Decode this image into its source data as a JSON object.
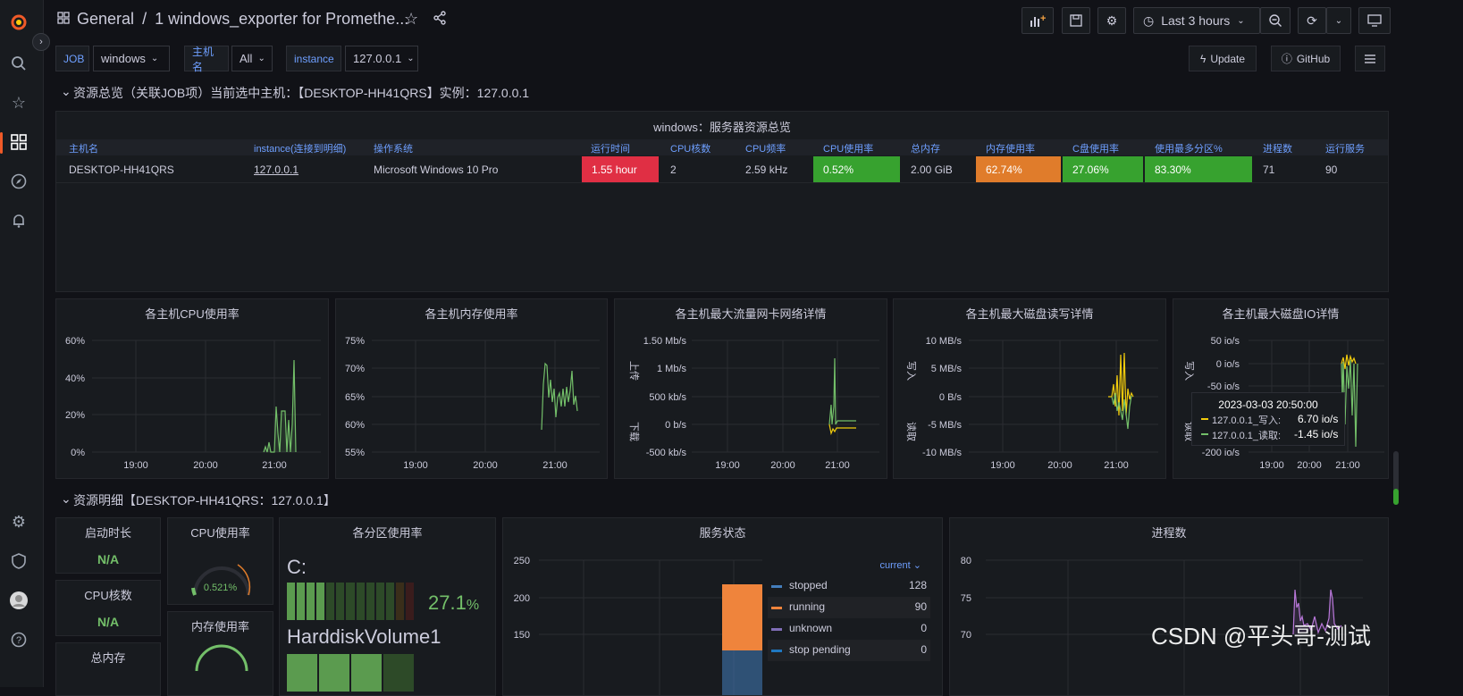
{
  "breadcrumb": {
    "folder": "General",
    "separator": "/",
    "dashboard": "1 windows_exporter for Promethe..."
  },
  "toolbar": {
    "time_range": "Last 3 hours"
  },
  "variables": [
    {
      "label": "JOB",
      "value": "windows"
    },
    {
      "label": "主机名",
      "value": "All"
    },
    {
      "label": "instance",
      "value": "127.0.0.1"
    }
  ],
  "links": {
    "update": "Update",
    "github": "GitHub"
  },
  "rows": {
    "overview": "资源总览（关联JOB项）当前选中主机：【DESKTOP-HH41QRS】实例：127.0.0.1",
    "detail": "资源明细【DESKTOP-HH41QRS：127.0.0.1】"
  },
  "overview_table": {
    "title": "windows：服务器资源总览",
    "headers": [
      "主机名",
      "instance(连接到明细)",
      "操作系统",
      "运行时间",
      "CPU核数",
      "CPU频率",
      "CPU使用率",
      "总内存",
      "内存使用率",
      "C盘使用率",
      "使用最多分区%",
      "进程数",
      "运行服务"
    ],
    "row": [
      "DESKTOP-HH41QRS",
      "127.0.0.1",
      "Microsoft Windows 10 Pro",
      "1.55 hour",
      "2",
      "2.59 kHz",
      "0.52%",
      "2.00 GiB",
      "62.74%",
      "27.06%",
      "83.30%",
      "71",
      "90"
    ],
    "cell_colors": {
      "uptime": "#e02f44",
      "cpu": "#37a22f",
      "mem": "#e07c2b",
      "cdisk": "#37a22f",
      "maxpart": "#37a22f"
    }
  },
  "panels": {
    "cpu": {
      "title": "各主机CPU使用率",
      "yticks": [
        "60%",
        "40%",
        "20%",
        "0%"
      ],
      "xticks": [
        "19:00",
        "20:00",
        "21:00"
      ]
    },
    "mem": {
      "title": "各主机内存使用率",
      "yticks": [
        "75%",
        "70%",
        "65%",
        "60%",
        "55%"
      ],
      "xticks": [
        "19:00",
        "20:00",
        "21:00"
      ]
    },
    "net": {
      "title": "各主机最大流量网卡网络详情",
      "yticks": [
        "1.50 Mb/s",
        "1 Mb/s",
        "500 kb/s",
        "0 b/s",
        "-500 kb/s"
      ],
      "xticks": [
        "19:00",
        "20:00",
        "21:00"
      ],
      "ylabel_top": "上传",
      "ylabel_bottom": "下载"
    },
    "disk": {
      "title": "各主机最大磁盘读写详情",
      "yticks": [
        "10 MB/s",
        "5 MB/s",
        "0 B/s",
        "-5 MB/s",
        "-10 MB/s"
      ],
      "xticks": [
        "19:00",
        "20:00",
        "21:00"
      ],
      "ylabel_top": "写入",
      "ylabel_bottom": "读取"
    },
    "io": {
      "title": "各主机最大磁盘IO详情",
      "yticks": [
        "50 io/s",
        "0 io/s",
        "-50 io/s",
        "-200 io/s"
      ],
      "xticks": [
        "19:00",
        "20:00",
        "21:00"
      ],
      "ylabel_top": "写入",
      "ylabel_bottom": "读取",
      "tooltip": {
        "time": "2023-03-03 20:50:00",
        "rows": [
          {
            "name": "127.0.0.1_写入:",
            "value": "6.70 io/s",
            "color": "#f2cc0c"
          },
          {
            "name": "127.0.0.1_读取:",
            "value": "-1.45 io/s",
            "color": "#73bf69"
          }
        ]
      }
    }
  },
  "detail": {
    "uptime": {
      "title": "启动时长",
      "value": "N/A"
    },
    "cpu_cores": {
      "title": "CPU核数",
      "value": "N/A"
    },
    "total_mem": {
      "title": "总内存"
    },
    "cpu_usage": {
      "title": "CPU使用率",
      "value": "0.521%"
    },
    "mem_usage": {
      "title": "内存使用率"
    },
    "partition": {
      "title": "各分区使用率",
      "drive_c": "C:",
      "c_value": "27.1",
      "c_unit": "%",
      "drive_hd": "HarddiskVolume1"
    },
    "services": {
      "title": "服务状态",
      "yticks": [
        "250",
        "200",
        "150"
      ],
      "legend_header": "current",
      "legend": [
        {
          "name": "stopped",
          "value": "128",
          "color": "#447ebc"
        },
        {
          "name": "running",
          "value": "90",
          "color": "#ef843c"
        },
        {
          "name": "unknown",
          "value": "0",
          "color": "#806eb7"
        },
        {
          "name": "stop pending",
          "value": "0",
          "color": "#1f78c1"
        }
      ]
    },
    "processes": {
      "title": "进程数",
      "yticks": [
        "80",
        "75",
        "70"
      ]
    }
  },
  "watermark": "CSDN @平头哥-测试"
}
